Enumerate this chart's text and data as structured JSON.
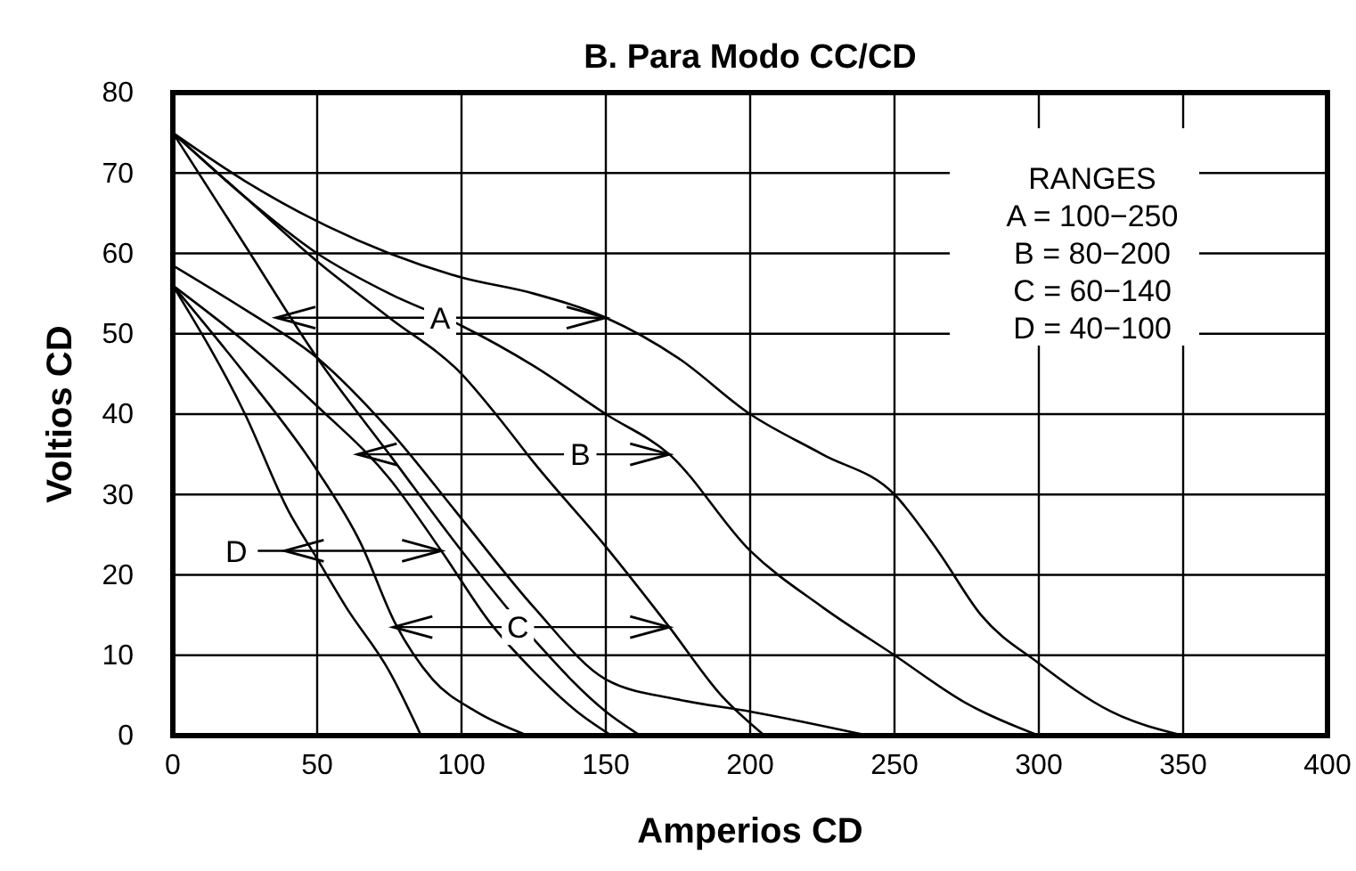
{
  "chart_data": {
    "type": "line",
    "title": "B. Para Modo CC/CD",
    "xlabel": "Amperios CD",
    "ylabel": "Voltios CD",
    "xlim": [
      0,
      400
    ],
    "ylim": [
      0,
      80
    ],
    "xticks": [
      0,
      50,
      100,
      150,
      200,
      250,
      300,
      350,
      400
    ],
    "yticks": [
      0,
      10,
      20,
      30,
      40,
      50,
      60,
      70,
      80
    ],
    "grid": true,
    "marker": "none",
    "line_style": "solid",
    "series": [
      {
        "color": "#000000",
        "x": [
          0,
          25,
          50,
          75,
          100,
          125,
          150,
          175,
          200,
          225,
          250,
          265,
          280,
          300,
          325,
          350
        ],
        "values": [
          75,
          69,
          64,
          60,
          57,
          55,
          52,
          47,
          40,
          35,
          30,
          23,
          15,
          9,
          3,
          0
        ]
      },
      {
        "color": "#000000",
        "x": [
          0,
          25,
          50,
          75,
          100,
          125,
          150,
          172,
          200,
          225,
          250,
          275,
          300
        ],
        "values": [
          75,
          67,
          60,
          55,
          51,
          46,
          40,
          35,
          23,
          16,
          10,
          4,
          0
        ]
      },
      {
        "color": "#000000",
        "x": [
          0,
          25,
          50,
          75,
          100,
          113,
          125,
          150,
          172,
          190,
          205
        ],
        "values": [
          75,
          67,
          59,
          52,
          45,
          39.5,
          34,
          23.5,
          13.5,
          5,
          0
        ]
      },
      {
        "color": "#000000",
        "x": [
          0,
          25,
          50,
          75,
          100,
          125,
          150,
          162
        ],
        "values": [
          75,
          61,
          47,
          35,
          23,
          12,
          3,
          0
        ]
      },
      {
        "color": "#000000",
        "x": [
          0,
          25,
          50,
          75,
          100,
          125,
          150,
          175,
          200,
          241
        ],
        "values": [
          58.5,
          53,
          47,
          38,
          27,
          16,
          7,
          4.5,
          3,
          0
        ]
      },
      {
        "color": "#000000",
        "x": [
          0,
          25,
          40,
          50,
          60,
          75,
          86
        ],
        "values": [
          56,
          40,
          28,
          22,
          16,
          8,
          0
        ]
      },
      {
        "color": "#000000",
        "x": [
          0,
          25,
          50,
          65,
          77,
          90,
          105,
          123
        ],
        "values": [
          56,
          45,
          33,
          24,
          14,
          7,
          3,
          0
        ]
      },
      {
        "color": "#000000",
        "x": [
          0,
          25,
          50,
          75,
          93,
          110,
          125,
          140,
          152
        ],
        "values": [
          56,
          49,
          41,
          32,
          23,
          14,
          8,
          3,
          0
        ]
      }
    ],
    "annotations": [
      {
        "text": "A",
        "x": 150,
        "y": 52
      },
      {
        "text": "B",
        "x": 172,
        "y": 35
      },
      {
        "text": "C",
        "x": 172,
        "y": 13.5
      },
      {
        "text": "D",
        "x": 93,
        "y": 23
      },
      "RANGES",
      "A = 100−250",
      "B = 80−200",
      "C = 60−140",
      "D = 40−100"
    ]
  }
}
